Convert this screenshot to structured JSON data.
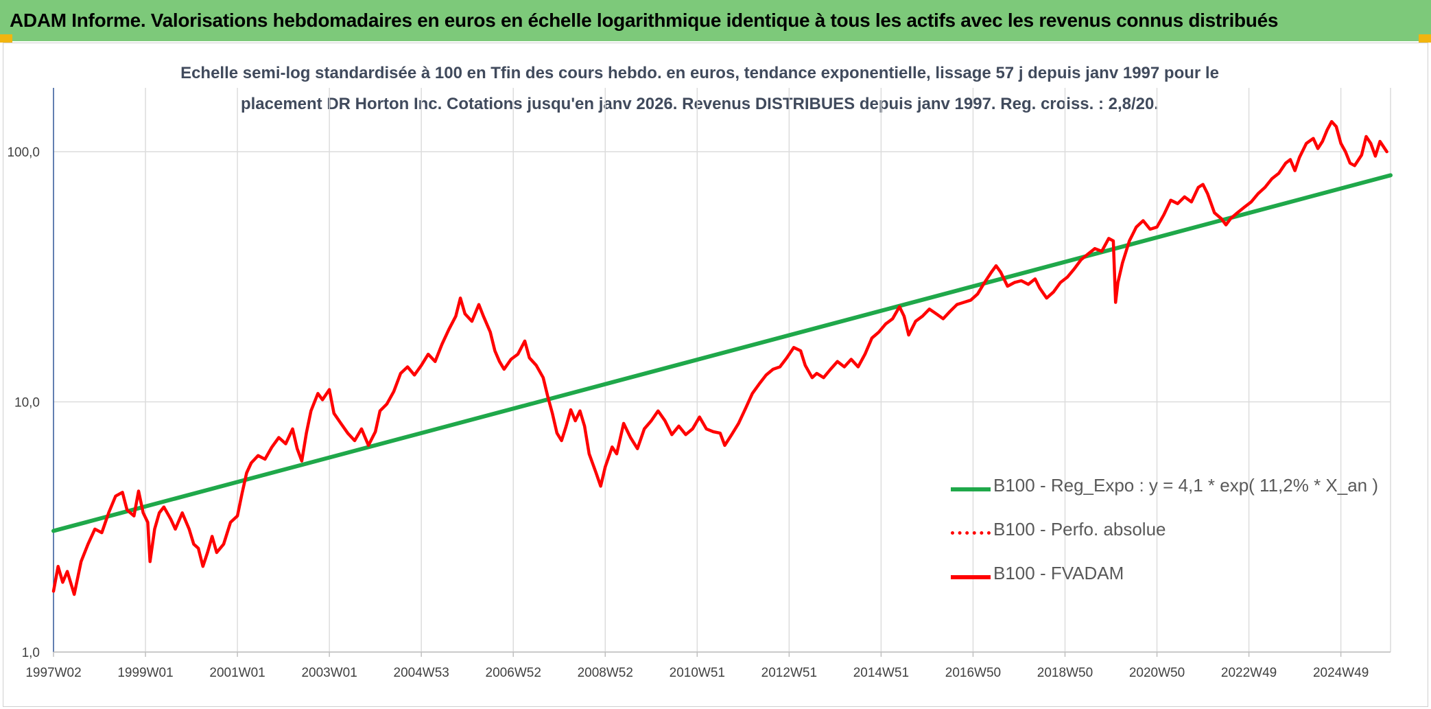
{
  "header": {
    "title": "ADAM Informe. Valorisations hebdomadaires en euros en échelle logarithmique identique à tous les actifs avec les revenus connus distribués"
  },
  "colors": {
    "banner": "#7dc97a",
    "corner": "#f2b50f",
    "trend": "#1fa84a",
    "series": "#ff0000",
    "grid": "#dcdcdc"
  },
  "chart_data": {
    "type": "line",
    "title_line1": "Echelle semi-log standardisée à 100 en Tfin des cours hebdo. en euros, tendance exponentielle, lissage 57 j depuis janv 1997 pour le",
    "title_line2": "placement DR Horton Inc. Cotations jusqu'en janv 2026. Revenus DISTRIBUES depuis janv 1997. Reg. croiss. : 2,8/20.",
    "y_scale": "log",
    "ylim": [
      1,
      180
    ],
    "y_ticks": [
      1,
      10,
      100
    ],
    "y_tick_labels": [
      "1,0",
      "10,0",
      "100,0"
    ],
    "x_range": [
      1997.0,
      2026.08
    ],
    "x_tick_labels": [
      "1997W02",
      "1999W01",
      "2001W01",
      "2003W01",
      "2004W53",
      "2006W52",
      "2008W52",
      "2010W51",
      "2012W51",
      "2014W51",
      "2016W50",
      "2018W50",
      "2020W50",
      "2022W49",
      "2024W49"
    ],
    "x_tick_positions": [
      1997.0,
      1999.0,
      2001.0,
      2003.0,
      2005.0,
      2007.0,
      2009.0,
      2011.0,
      2013.0,
      2015.0,
      2017.0,
      2019.0,
      2021.0,
      2023.0,
      2025.0
    ],
    "grid": "horizontal and vertical",
    "legend_position": "bottom-right",
    "series": [
      {
        "name": "B100 - Reg_Expo : y = 4,1 * exp( 11,2% *  X_an )",
        "color": "#1fa84a",
        "style": "solid",
        "points": [
          [
            1997.0,
            3.05
          ],
          [
            2026.08,
            80.5
          ]
        ]
      },
      {
        "name": "B100 - Perfo. absolue",
        "color": "#ff0000",
        "style": "dotted",
        "points": []
      },
      {
        "name": "B100 - FVADAM",
        "color": "#ff0000",
        "style": "solid",
        "points": [
          [
            1997.0,
            1.75
          ],
          [
            1997.1,
            2.2
          ],
          [
            1997.2,
            1.9
          ],
          [
            1997.3,
            2.1
          ],
          [
            1997.45,
            1.7
          ],
          [
            1997.6,
            2.3
          ],
          [
            1997.75,
            2.7
          ],
          [
            1997.9,
            3.1
          ],
          [
            1998.05,
            3.0
          ],
          [
            1998.2,
            3.6
          ],
          [
            1998.35,
            4.2
          ],
          [
            1998.5,
            4.35
          ],
          [
            1998.6,
            3.7
          ],
          [
            1998.75,
            3.5
          ],
          [
            1998.85,
            4.4
          ],
          [
            1998.95,
            3.6
          ],
          [
            1999.05,
            3.3
          ],
          [
            1999.1,
            2.3
          ],
          [
            1999.2,
            3.1
          ],
          [
            1999.3,
            3.6
          ],
          [
            1999.4,
            3.8
          ],
          [
            1999.55,
            3.4
          ],
          [
            1999.65,
            3.1
          ],
          [
            1999.8,
            3.6
          ],
          [
            1999.95,
            3.1
          ],
          [
            2000.05,
            2.7
          ],
          [
            2000.15,
            2.6
          ],
          [
            2000.25,
            2.2
          ],
          [
            2000.35,
            2.5
          ],
          [
            2000.45,
            2.9
          ],
          [
            2000.55,
            2.5
          ],
          [
            2000.7,
            2.7
          ],
          [
            2000.85,
            3.3
          ],
          [
            2001.0,
            3.5
          ],
          [
            2001.1,
            4.3
          ],
          [
            2001.2,
            5.2
          ],
          [
            2001.3,
            5.7
          ],
          [
            2001.45,
            6.1
          ],
          [
            2001.6,
            5.9
          ],
          [
            2001.75,
            6.6
          ],
          [
            2001.9,
            7.2
          ],
          [
            2002.05,
            6.8
          ],
          [
            2002.2,
            7.8
          ],
          [
            2002.3,
            6.5
          ],
          [
            2002.4,
            5.8
          ],
          [
            2002.5,
            7.5
          ],
          [
            2002.6,
            9.2
          ],
          [
            2002.75,
            10.8
          ],
          [
            2002.85,
            10.2
          ],
          [
            2003.0,
            11.2
          ],
          [
            2003.1,
            9.0
          ],
          [
            2003.25,
            8.2
          ],
          [
            2003.4,
            7.5
          ],
          [
            2003.55,
            7.0
          ],
          [
            2003.7,
            7.8
          ],
          [
            2003.85,
            6.7
          ],
          [
            2004.0,
            7.6
          ],
          [
            2004.1,
            9.2
          ],
          [
            2004.25,
            9.8
          ],
          [
            2004.4,
            11.0
          ],
          [
            2004.55,
            13.0
          ],
          [
            2004.7,
            13.8
          ],
          [
            2004.85,
            12.8
          ],
          [
            2005.0,
            14.0
          ],
          [
            2005.15,
            15.5
          ],
          [
            2005.3,
            14.5
          ],
          [
            2005.45,
            17.0
          ],
          [
            2005.6,
            19.5
          ],
          [
            2005.75,
            22.0
          ],
          [
            2005.85,
            26.0
          ],
          [
            2005.95,
            22.5
          ],
          [
            2006.1,
            21.0
          ],
          [
            2006.25,
            24.5
          ],
          [
            2006.35,
            22.0
          ],
          [
            2006.5,
            19.0
          ],
          [
            2006.6,
            16.0
          ],
          [
            2006.7,
            14.5
          ],
          [
            2006.8,
            13.5
          ],
          [
            2006.95,
            14.8
          ],
          [
            2007.1,
            15.5
          ],
          [
            2007.25,
            17.5
          ],
          [
            2007.35,
            15.0
          ],
          [
            2007.5,
            14.0
          ],
          [
            2007.65,
            12.5
          ],
          [
            2007.75,
            10.5
          ],
          [
            2007.85,
            9.0
          ],
          [
            2007.95,
            7.5
          ],
          [
            2008.05,
            7.0
          ],
          [
            2008.15,
            8.0
          ],
          [
            2008.25,
            9.3
          ],
          [
            2008.35,
            8.4
          ],
          [
            2008.45,
            9.2
          ],
          [
            2008.55,
            8.0
          ],
          [
            2008.65,
            6.2
          ],
          [
            2008.8,
            5.2
          ],
          [
            2008.9,
            4.6
          ],
          [
            2009.0,
            5.5
          ],
          [
            2009.15,
            6.6
          ],
          [
            2009.25,
            6.2
          ],
          [
            2009.4,
            8.2
          ],
          [
            2009.55,
            7.2
          ],
          [
            2009.7,
            6.5
          ],
          [
            2009.85,
            7.8
          ],
          [
            2010.0,
            8.4
          ],
          [
            2010.15,
            9.2
          ],
          [
            2010.3,
            8.4
          ],
          [
            2010.45,
            7.4
          ],
          [
            2010.6,
            8.0
          ],
          [
            2010.75,
            7.4
          ],
          [
            2010.9,
            7.8
          ],
          [
            2011.05,
            8.7
          ],
          [
            2011.2,
            7.8
          ],
          [
            2011.35,
            7.6
          ],
          [
            2011.5,
            7.5
          ],
          [
            2011.6,
            6.7
          ],
          [
            2011.75,
            7.4
          ],
          [
            2011.9,
            8.2
          ],
          [
            2012.05,
            9.4
          ],
          [
            2012.2,
            10.8
          ],
          [
            2012.35,
            11.8
          ],
          [
            2012.5,
            12.8
          ],
          [
            2012.65,
            13.5
          ],
          [
            2012.8,
            13.8
          ],
          [
            2012.95,
            15.0
          ],
          [
            2013.1,
            16.5
          ],
          [
            2013.25,
            16.0
          ],
          [
            2013.35,
            14.0
          ],
          [
            2013.5,
            12.5
          ],
          [
            2013.6,
            13.0
          ],
          [
            2013.75,
            12.5
          ],
          [
            2013.9,
            13.5
          ],
          [
            2014.05,
            14.5
          ],
          [
            2014.2,
            13.8
          ],
          [
            2014.35,
            14.8
          ],
          [
            2014.5,
            13.8
          ],
          [
            2014.65,
            15.5
          ],
          [
            2014.8,
            18.0
          ],
          [
            2014.95,
            19.0
          ],
          [
            2015.1,
            20.5
          ],
          [
            2015.25,
            21.5
          ],
          [
            2015.4,
            24.0
          ],
          [
            2015.5,
            22.0
          ],
          [
            2015.6,
            18.5
          ],
          [
            2015.75,
            21.0
          ],
          [
            2015.9,
            22.0
          ],
          [
            2016.05,
            23.5
          ],
          [
            2016.2,
            22.5
          ],
          [
            2016.35,
            21.5
          ],
          [
            2016.5,
            23.0
          ],
          [
            2016.65,
            24.5
          ],
          [
            2016.8,
            25.0
          ],
          [
            2016.95,
            25.5
          ],
          [
            2017.1,
            27.0
          ],
          [
            2017.25,
            30.0
          ],
          [
            2017.4,
            33.0
          ],
          [
            2017.5,
            35.0
          ],
          [
            2017.6,
            33.0
          ],
          [
            2017.75,
            29.0
          ],
          [
            2017.9,
            30.0
          ],
          [
            2018.05,
            30.5
          ],
          [
            2018.2,
            29.5
          ],
          [
            2018.35,
            31.0
          ],
          [
            2018.45,
            28.5
          ],
          [
            2018.6,
            26.0
          ],
          [
            2018.75,
            27.5
          ],
          [
            2018.9,
            30.0
          ],
          [
            2019.05,
            31.5
          ],
          [
            2019.2,
            34.0
          ],
          [
            2019.35,
            37.0
          ],
          [
            2019.5,
            39.0
          ],
          [
            2019.65,
            41.0
          ],
          [
            2019.8,
            40.0
          ],
          [
            2019.95,
            45.0
          ],
          [
            2020.05,
            44.0
          ],
          [
            2020.1,
            25.0
          ],
          [
            2020.15,
            30.0
          ],
          [
            2020.25,
            36.0
          ],
          [
            2020.4,
            44.0
          ],
          [
            2020.55,
            50.0
          ],
          [
            2020.7,
            53.0
          ],
          [
            2020.85,
            49.0
          ],
          [
            2021.0,
            50.0
          ],
          [
            2021.15,
            56.0
          ],
          [
            2021.3,
            64.0
          ],
          [
            2021.45,
            62.0
          ],
          [
            2021.6,
            66.0
          ],
          [
            2021.75,
            63.0
          ],
          [
            2021.9,
            72.0
          ],
          [
            2022.0,
            74.0
          ],
          [
            2022.1,
            68.0
          ],
          [
            2022.25,
            57.0
          ],
          [
            2022.4,
            54.0
          ],
          [
            2022.5,
            51.0
          ],
          [
            2022.6,
            54.0
          ],
          [
            2022.75,
            57.0
          ],
          [
            2022.9,
            60.0
          ],
          [
            2023.05,
            63.0
          ],
          [
            2023.2,
            68.0
          ],
          [
            2023.35,
            72.0
          ],
          [
            2023.5,
            78.0
          ],
          [
            2023.65,
            82.0
          ],
          [
            2023.8,
            90.0
          ],
          [
            2023.9,
            93.0
          ],
          [
            2024.0,
            84.0
          ],
          [
            2024.1,
            95.0
          ],
          [
            2024.25,
            108.0
          ],
          [
            2024.4,
            113.0
          ],
          [
            2024.5,
            103.0
          ],
          [
            2024.6,
            110.0
          ],
          [
            2024.7,
            122.0
          ],
          [
            2024.8,
            132.0
          ],
          [
            2024.9,
            126.0
          ],
          [
            2025.0,
            108.0
          ],
          [
            2025.1,
            100.0
          ],
          [
            2025.2,
            90.0
          ],
          [
            2025.3,
            88.0
          ],
          [
            2025.45,
            97.0
          ],
          [
            2025.55,
            115.0
          ],
          [
            2025.65,
            108.0
          ],
          [
            2025.75,
            96.0
          ],
          [
            2025.85,
            110.0
          ],
          [
            2026.0,
            100.0
          ]
        ]
      }
    ]
  }
}
